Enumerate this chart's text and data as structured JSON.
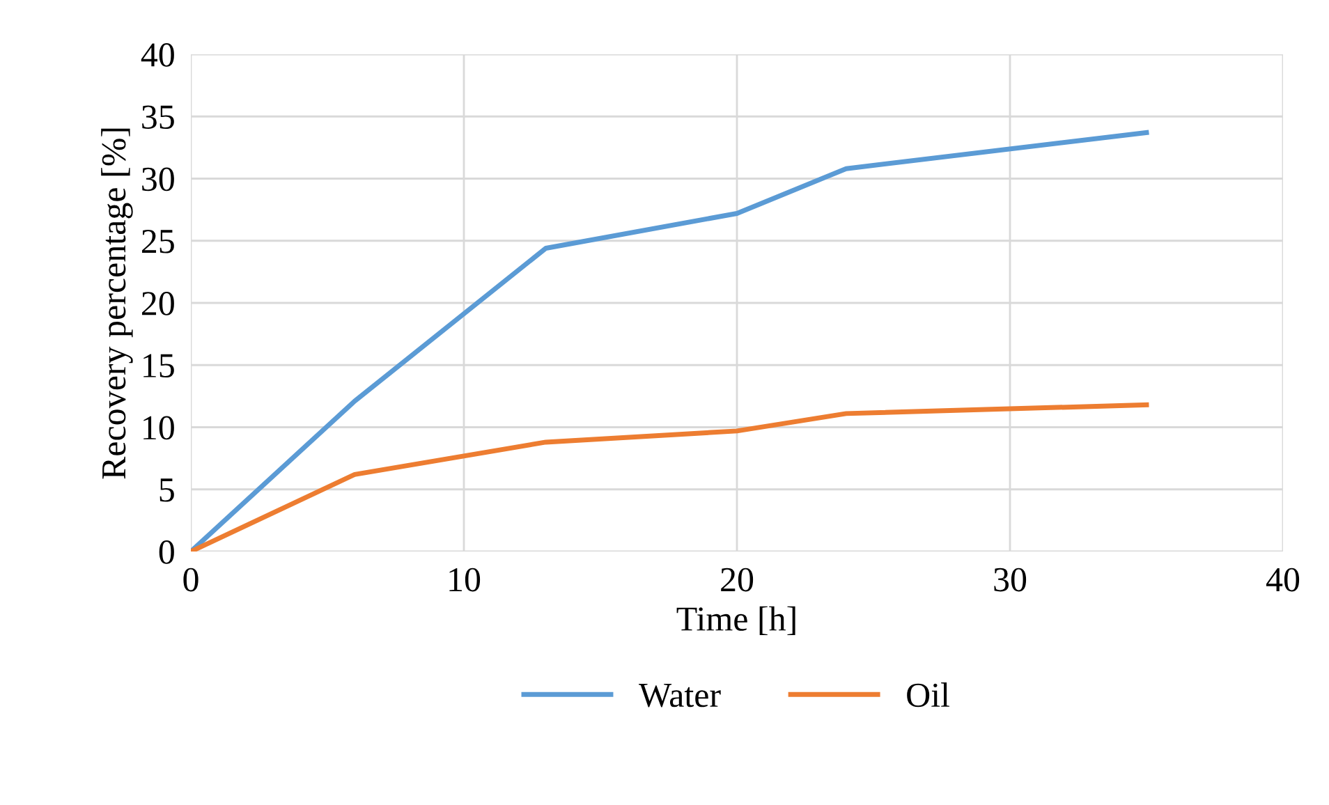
{
  "chart_data": {
    "type": "line",
    "xlabel": "Time [h]",
    "ylabel": "Recovery percentage [%]",
    "series": [
      {
        "name": "Water",
        "color": "#5b9bd5",
        "x": [
          0,
          6,
          13,
          20,
          24,
          35
        ],
        "values": [
          0,
          12.1,
          24.4,
          27.2,
          30.8,
          33.7
        ]
      },
      {
        "name": "Oil",
        "color": "#ed7d31",
        "x": [
          0,
          6,
          13,
          20,
          24,
          35
        ],
        "values": [
          0,
          6.2,
          8.8,
          9.7,
          11.1,
          11.8
        ]
      }
    ],
    "xlim": [
      0,
      40
    ],
    "xticks": [
      0,
      10,
      20,
      30,
      40
    ],
    "ylim": [
      0,
      40
    ],
    "yticks": [
      0,
      5,
      10,
      15,
      20,
      25,
      30,
      35,
      40
    ],
    "grid": true,
    "legend": "bottom",
    "marker": "none",
    "line_style": "solid"
  }
}
